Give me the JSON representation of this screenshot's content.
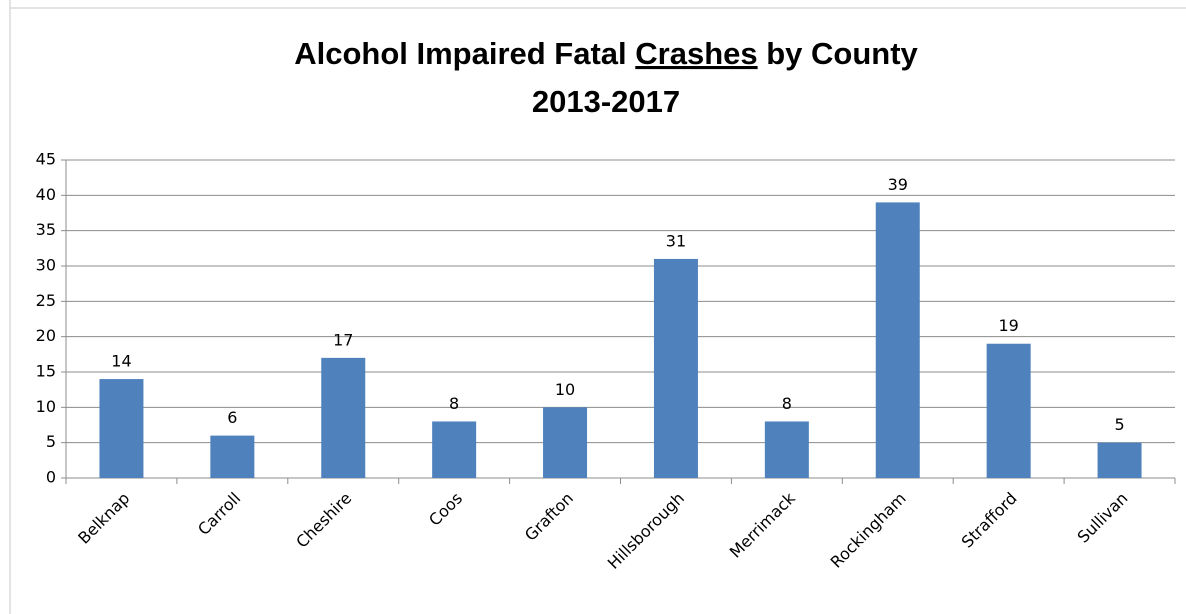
{
  "chart_data": {
    "type": "bar",
    "title": [
      "Alcohol Impaired Fatal ",
      "Crashes",
      " by County"
    ],
    "subtitle": "2013-2017",
    "categories": [
      "Belknap",
      "Carroll",
      "Cheshire",
      "Coos",
      "Grafton",
      "Hillsborough",
      "Merrimack",
      "Rockingham",
      "Strafford",
      "Sullivan"
    ],
    "values": [
      14,
      6,
      17,
      8,
      10,
      31,
      8,
      39,
      19,
      5
    ],
    "color": "#4f81bd",
    "ylim": [
      0,
      45
    ],
    "yticks": [
      0,
      5,
      10,
      15,
      20,
      25,
      30,
      35,
      40,
      45
    ],
    "grid": true
  }
}
